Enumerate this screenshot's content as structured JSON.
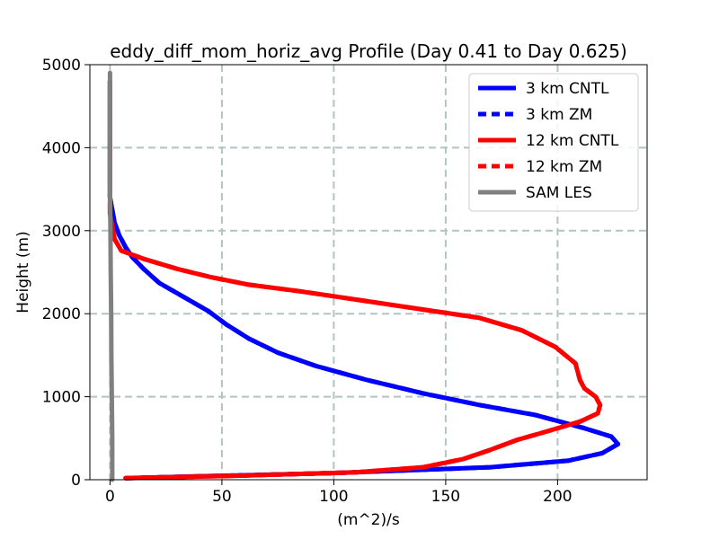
{
  "chart_data": {
    "type": "line",
    "title": "eddy_diff_mom_horiz_avg Profile (Day 0.41 to Day 0.625)",
    "xlabel": "(m^2)/s",
    "ylabel": "Height (m)",
    "xlim": [
      -9,
      240
    ],
    "ylim": [
      0,
      5000
    ],
    "xticks": [
      0,
      50,
      100,
      150,
      200
    ],
    "yticks": [
      0,
      1000,
      2000,
      3000,
      4000,
      5000
    ],
    "grid": true,
    "legend_position": "top-right",
    "series": [
      {
        "name": "3 km CNTL",
        "color": "#0000ff",
        "dash": "solid",
        "points": [
          [
            7,
            20
          ],
          [
            100,
            80
          ],
          [
            170,
            150
          ],
          [
            205,
            230
          ],
          [
            220,
            320
          ],
          [
            227,
            430
          ],
          [
            224,
            520
          ],
          [
            212,
            620
          ],
          [
            190,
            780
          ],
          [
            165,
            900
          ],
          [
            140,
            1040
          ],
          [
            115,
            1200
          ],
          [
            92,
            1370
          ],
          [
            75,
            1530
          ],
          [
            62,
            1700
          ],
          [
            52,
            1870
          ],
          [
            44,
            2030
          ],
          [
            33,
            2200
          ],
          [
            22,
            2370
          ],
          [
            15,
            2540
          ],
          [
            10,
            2680
          ],
          [
            7,
            2800
          ],
          [
            4,
            2950
          ],
          [
            2,
            3100
          ],
          [
            1,
            3250
          ],
          [
            0,
            3400
          ],
          [
            0,
            3600
          ],
          [
            0,
            3800
          ],
          [
            0,
            4000
          ],
          [
            0,
            4200
          ],
          [
            0,
            4400
          ],
          [
            0,
            4600
          ],
          [
            0,
            4800
          ]
        ]
      },
      {
        "name": "3 km ZM",
        "color": "#0000ff",
        "dash": "dashed",
        "points": [
          [
            7,
            20
          ],
          [
            100,
            80
          ],
          [
            170,
            150
          ],
          [
            205,
            230
          ],
          [
            220,
            320
          ],
          [
            227,
            430
          ],
          [
            224,
            520
          ],
          [
            212,
            620
          ],
          [
            190,
            780
          ],
          [
            165,
            900
          ],
          [
            140,
            1040
          ],
          [
            115,
            1200
          ],
          [
            92,
            1370
          ],
          [
            75,
            1530
          ],
          [
            62,
            1700
          ],
          [
            52,
            1870
          ],
          [
            44,
            2030
          ],
          [
            33,
            2200
          ],
          [
            22,
            2370
          ],
          [
            15,
            2540
          ],
          [
            10,
            2680
          ],
          [
            7,
            2800
          ],
          [
            4,
            2950
          ],
          [
            2,
            3100
          ],
          [
            1,
            3250
          ],
          [
            0,
            3400
          ],
          [
            0,
            3600
          ],
          [
            0,
            3800
          ],
          [
            0,
            4000
          ],
          [
            0,
            4200
          ],
          [
            0,
            4400
          ],
          [
            0,
            4600
          ],
          [
            0,
            4800
          ]
        ]
      },
      {
        "name": "12 km CNTL",
        "color": "#ff0000",
        "dash": "solid",
        "points": [
          [
            7,
            20
          ],
          [
            60,
            50
          ],
          [
            110,
            90
          ],
          [
            140,
            150
          ],
          [
            158,
            250
          ],
          [
            170,
            360
          ],
          [
            182,
            480
          ],
          [
            195,
            580
          ],
          [
            210,
            700
          ],
          [
            218,
            800
          ],
          [
            219,
            900
          ],
          [
            217,
            1000
          ],
          [
            212,
            1100
          ],
          [
            210,
            1200
          ],
          [
            208,
            1400
          ],
          [
            199,
            1600
          ],
          [
            184,
            1800
          ],
          [
            165,
            1950
          ],
          [
            140,
            2050
          ],
          [
            110,
            2170
          ],
          [
            85,
            2270
          ],
          [
            62,
            2350
          ],
          [
            45,
            2440
          ],
          [
            30,
            2540
          ],
          [
            15,
            2660
          ],
          [
            5,
            2760
          ],
          [
            2,
            2900
          ],
          [
            1,
            3050
          ],
          [
            0,
            3200
          ],
          [
            0,
            3400
          ],
          [
            0,
            3600
          ],
          [
            0,
            3800
          ],
          [
            0,
            4000
          ],
          [
            0,
            4200
          ],
          [
            0,
            4400
          ],
          [
            0,
            4600
          ],
          [
            0,
            4800
          ]
        ]
      },
      {
        "name": "12 km ZM",
        "color": "#ff0000",
        "dash": "dashed",
        "points": [
          [
            7,
            20
          ],
          [
            60,
            50
          ],
          [
            110,
            90
          ],
          [
            140,
            150
          ],
          [
            158,
            250
          ],
          [
            170,
            360
          ],
          [
            182,
            480
          ],
          [
            195,
            580
          ],
          [
            210,
            700
          ],
          [
            218,
            800
          ],
          [
            219,
            900
          ],
          [
            217,
            1000
          ],
          [
            212,
            1100
          ],
          [
            210,
            1200
          ],
          [
            208,
            1400
          ],
          [
            199,
            1600
          ],
          [
            184,
            1800
          ],
          [
            165,
            1950
          ],
          [
            140,
            2050
          ],
          [
            110,
            2170
          ],
          [
            85,
            2270
          ],
          [
            62,
            2350
          ],
          [
            45,
            2440
          ],
          [
            30,
            2540
          ],
          [
            15,
            2660
          ],
          [
            5,
            2760
          ],
          [
            2,
            2900
          ],
          [
            1,
            3050
          ],
          [
            0,
            3200
          ],
          [
            0,
            3400
          ],
          [
            0,
            3600
          ],
          [
            0,
            3800
          ],
          [
            0,
            4000
          ],
          [
            0,
            4200
          ],
          [
            0,
            4400
          ],
          [
            0,
            4600
          ],
          [
            0,
            4800
          ]
        ]
      },
      {
        "name": "SAM LES",
        "color": "#808080",
        "dash": "solid",
        "points": [
          [
            1,
            0
          ],
          [
            1,
            500
          ],
          [
            0.8,
            1000
          ],
          [
            0.6,
            1500
          ],
          [
            0.5,
            2000
          ],
          [
            0.3,
            2500
          ],
          [
            0.2,
            3000
          ],
          [
            0,
            3500
          ],
          [
            0,
            4000
          ],
          [
            0,
            4500
          ],
          [
            0,
            4900
          ]
        ]
      }
    ]
  }
}
